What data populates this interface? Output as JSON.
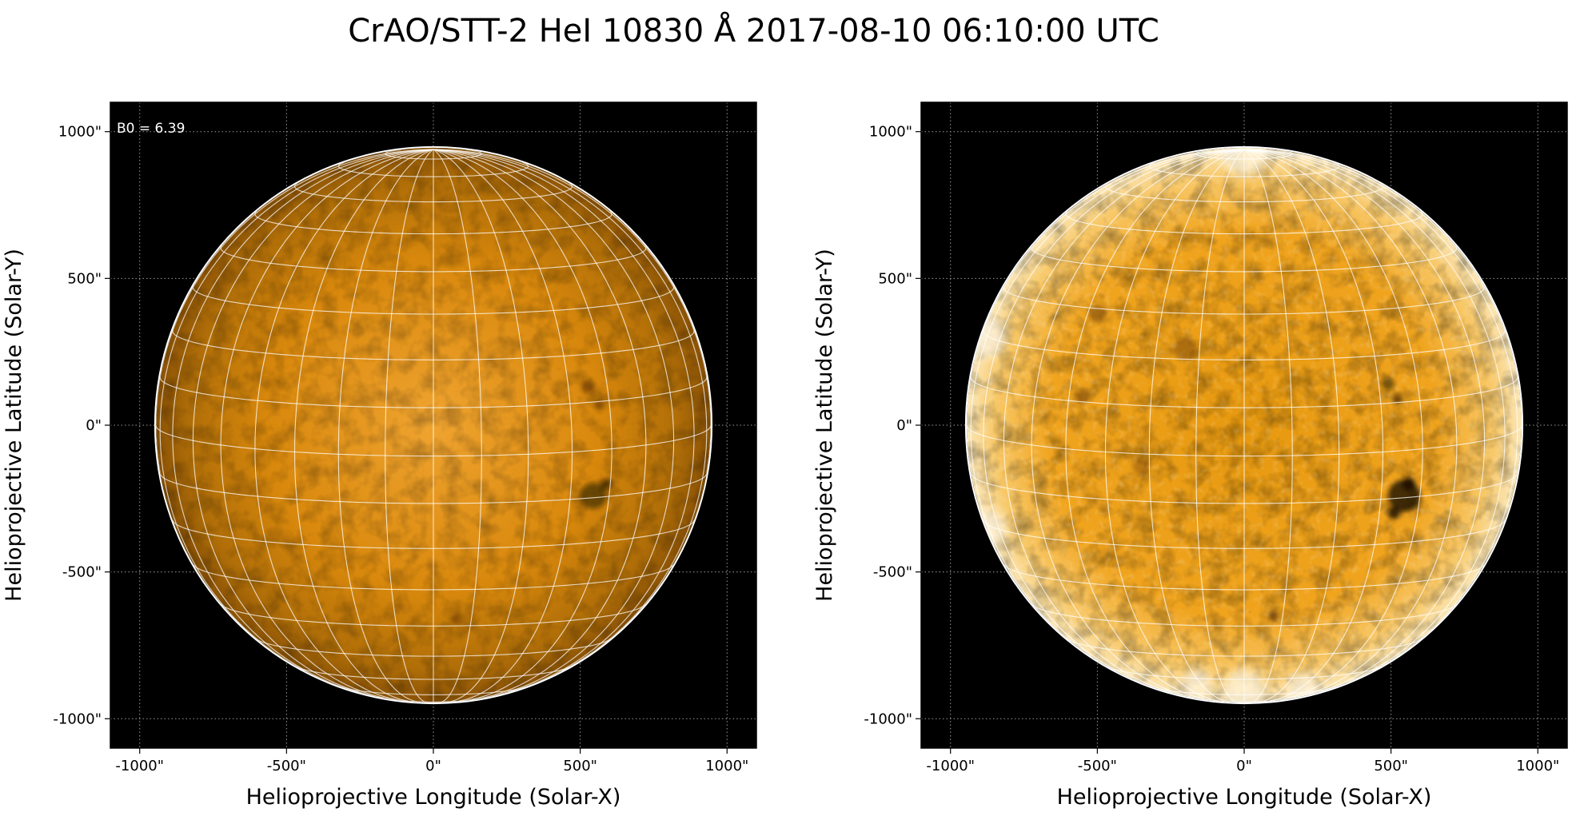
{
  "title": "CrAO/STT-2 HeI 10830 Å 2017-08-10 06:10:00 UTC",
  "colors": {
    "background": "#000000",
    "disk_center": "#f0a430",
    "disk_mid": "#d8880c",
    "disk_limb": "#8a5206",
    "grid_line": "#ffffff",
    "axis_grid": "#9a9a9a",
    "limb_circle": "#ffffff"
  },
  "chart_data": [
    {
      "type": "heatmap",
      "panel": "left",
      "xlabel": "Helioprojective Longitude (Solar-X)",
      "ylabel": "Helioprojective Latitude (Solar-Y)",
      "xlim": [
        -1100,
        1100
      ],
      "ylim": [
        -1100,
        1100
      ],
      "xticks": [
        -1000,
        -500,
        0,
        500,
        1000
      ],
      "yticks": [
        -1000,
        -500,
        0,
        500,
        1000
      ],
      "xtick_labels": [
        "-1000\"",
        "-500\"",
        "0\"",
        "500\"",
        "1000\""
      ],
      "ytick_labels": [
        "-1000\"",
        "-500\"",
        "0\"",
        "500\"",
        "1000\""
      ],
      "annotation": "B0 = 6.39",
      "solar_radius_arcsec": 945,
      "b0_deg": 6.39,
      "grid_step_deg": 10,
      "axis_grid": true,
      "colormap": "orange",
      "limb_darkening": true,
      "dark_features": [
        {
          "x": 545,
          "y": -240,
          "r": 45,
          "strength": 0.55
        },
        {
          "x": 590,
          "y": -200,
          "r": 18,
          "strength": 0.6
        },
        {
          "x": 525,
          "y": 130,
          "r": 22,
          "strength": 0.35
        },
        {
          "x": 565,
          "y": 70,
          "r": 18,
          "strength": 0.3
        },
        {
          "x": 80,
          "y": -660,
          "r": 20,
          "strength": 0.3
        }
      ]
    },
    {
      "type": "heatmap",
      "panel": "right",
      "xlabel": "Helioprojective Longitude (Solar-X)",
      "ylabel": "Helioprojective Latitude (Solar-Y)",
      "xlim": [
        -1100,
        1100
      ],
      "ylim": [
        -1100,
        1100
      ],
      "xticks": [
        -1000,
        -500,
        0,
        500,
        1000
      ],
      "yticks": [
        -1000,
        -500,
        0,
        500,
        1000
      ],
      "xtick_labels": [
        "-1000\"",
        "-500\"",
        "0\"",
        "500\"",
        "1000\""
      ],
      "ytick_labels": [
        "-1000\"",
        "-500\"",
        "0\"",
        "500\"",
        "1000\""
      ],
      "solar_radius_arcsec": 945,
      "b0_deg": 6.39,
      "grid_step_deg": 10,
      "axis_grid": true,
      "colormap": "orange",
      "limb_darkening": false,
      "limb_brightening": true,
      "dark_features": [
        {
          "x": 545,
          "y": -240,
          "r": 55,
          "strength": 0.8
        },
        {
          "x": 560,
          "y": -200,
          "r": 22,
          "strength": 0.9
        },
        {
          "x": 510,
          "y": -300,
          "r": 20,
          "strength": 0.8
        },
        {
          "x": 490,
          "y": 140,
          "r": 22,
          "strength": 0.55
        },
        {
          "x": 520,
          "y": 90,
          "r": 16,
          "strength": 0.5
        },
        {
          "x": -500,
          "y": 380,
          "r": 30,
          "strength": 0.35
        },
        {
          "x": -200,
          "y": 260,
          "r": 40,
          "strength": 0.3
        },
        {
          "x": -550,
          "y": 100,
          "r": 25,
          "strength": 0.3
        },
        {
          "x": 100,
          "y": -650,
          "r": 18,
          "strength": 0.45
        },
        {
          "x": -350,
          "y": -140,
          "r": 30,
          "strength": 0.25
        }
      ]
    }
  ]
}
